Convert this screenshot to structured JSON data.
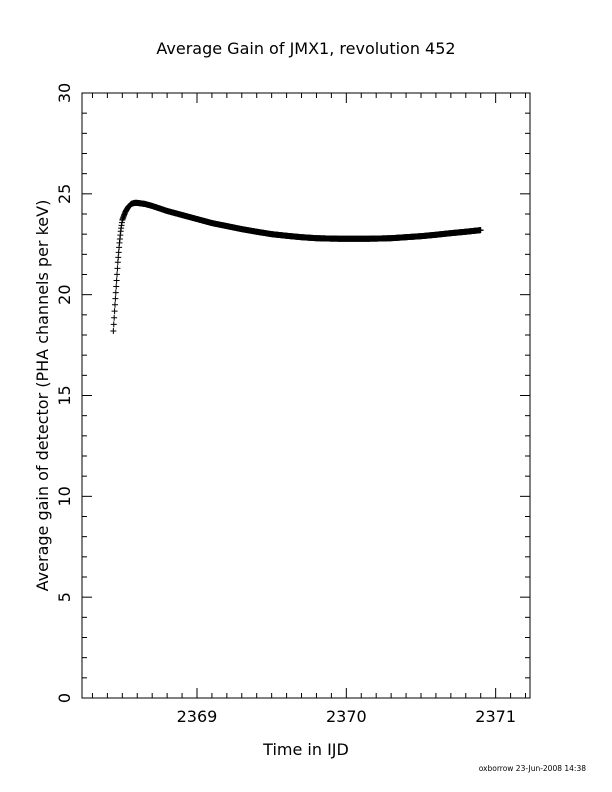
{
  "chart_data": {
    "type": "scatter",
    "title": "Average Gain of JMX1, revolution 452",
    "xlabel": "Time in IJD",
    "ylabel": "Average gain of detector (PHA channels per keV)",
    "xlim": [
      2368.23,
      2371.23
    ],
    "ylim": [
      0,
      30
    ],
    "x_major_ticks": [
      2369,
      2370,
      2371
    ],
    "x_tick_labels": [
      "2369",
      "2370",
      "2371"
    ],
    "y_major_ticks": [
      0,
      5,
      10,
      15,
      20,
      25,
      30
    ],
    "y_tick_labels": [
      "0",
      "5",
      "10",
      "15",
      "20",
      "25",
      "30"
    ],
    "grid": false,
    "marker": "plus",
    "series": [
      {
        "x": [
          2368.44,
          2368.45,
          2368.46,
          2368.47,
          2368.48,
          2368.49,
          2368.5,
          2368.52,
          2368.54,
          2368.56,
          2368.58,
          2368.6,
          2368.65,
          2368.7,
          2368.8,
          2368.9,
          2369.0,
          2369.1,
          2369.2,
          2369.3,
          2369.4,
          2369.5,
          2369.6,
          2369.7,
          2369.8,
          2369.9,
          2370.0,
          2370.1,
          2370.2,
          2370.3,
          2370.4,
          2370.5,
          2370.6,
          2370.7,
          2370.8,
          2370.9
        ],
        "y": [
          18.2,
          19.4,
          20.5,
          21.6,
          22.5,
          23.2,
          23.7,
          24.1,
          24.35,
          24.5,
          24.55,
          24.55,
          24.5,
          24.4,
          24.15,
          23.95,
          23.75,
          23.55,
          23.4,
          23.25,
          23.12,
          23.0,
          22.92,
          22.85,
          22.8,
          22.78,
          22.77,
          22.77,
          22.78,
          22.8,
          22.85,
          22.9,
          22.97,
          23.05,
          23.12,
          23.2
        ]
      }
    ]
  },
  "footer": {
    "credit": "oxborrow 23-Jun-2008 14:38"
  }
}
